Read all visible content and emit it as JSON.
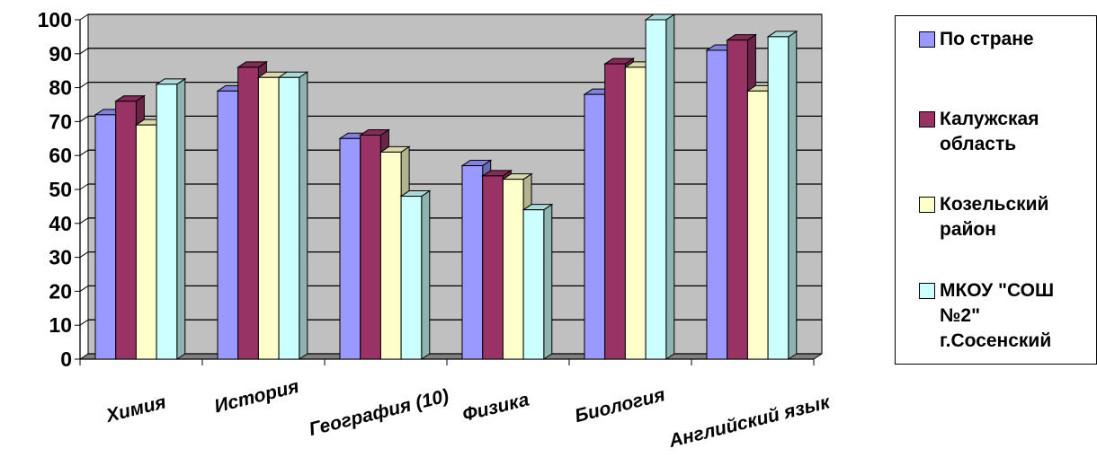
{
  "chart_data": {
    "type": "bar",
    "categories": [
      "Химия",
      "История",
      "География (10)",
      "Физика",
      "Биология",
      "Английский язык"
    ],
    "series": [
      {
        "name": "По стране",
        "values": [
          72,
          79,
          65,
          57,
          78,
          91
        ],
        "color": "#9999ff"
      },
      {
        "name": "Калужская область",
        "values": [
          76,
          86,
          66,
          54,
          87,
          94
        ],
        "color": "#993366"
      },
      {
        "name": "Козельский район",
        "values": [
          69,
          83,
          61,
          53,
          86,
          79
        ],
        "color": "#ffffcc"
      },
      {
        "name": "МКОУ \"СОШ №2\" г.Сосенский",
        "values": [
          81,
          83,
          48,
          44,
          100,
          95
        ],
        "color": "#ccffff"
      }
    ],
    "title": "",
    "xlabel": "",
    "ylabel": "",
    "ylim": [
      0,
      100
    ],
    "yticks": [
      "0",
      "10",
      "20",
      "30",
      "40",
      "50",
      "60",
      "70",
      "80",
      "90",
      "100"
    ],
    "grid": true,
    "legend_position": "right",
    "wall_color": "#c0c0c0"
  },
  "legend": {
    "items": [
      {
        "label": "По стране",
        "color": "#9999ff"
      },
      {
        "label": "Калужская\nобласть",
        "color": "#993366"
      },
      {
        "label": "Козельский\nрайон",
        "color": "#ffffcc"
      },
      {
        "label": "МКОУ \"СОШ\n№2\"\nг.Сосенский",
        "color": "#ccffff"
      }
    ]
  }
}
